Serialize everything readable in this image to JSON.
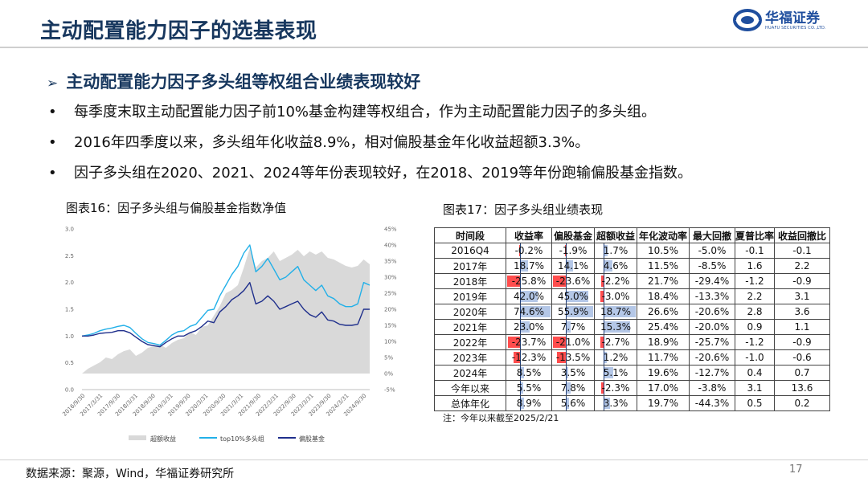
{
  "slide": {
    "title": "主动配置能力因子的选基表现",
    "headline": "主动配置能力因子多头组等权组合业绩表现较好",
    "arrow_glyph": "➢",
    "bullets": [
      "每季度末取主动配置能力因子前10%基金构建等权组合，作为主动配置能力因子的多头组。",
      "2016年四季度以来，多头组年化收益8.9%，相对偏股基金年化收益超额3.3%。",
      "因子多头组在2020、2021、2024等年份表现较好，在2018、2019等年份跑输偏股基金指数。"
    ],
    "source": "数据来源：聚源，Wind，华福证券研究所",
    "page_number": "17"
  },
  "logo": {
    "name": "华福证券",
    "sub": "HUAFU SECURITIES CO.,LTD."
  },
  "figure16": {
    "title": "图表16：因子多头组与偏股基金指数净值"
  },
  "figure17": {
    "title": "图表17：因子多头组业绩表现",
    "note": "注：今年以来截至2025/2/21",
    "headers": [
      "时间段",
      "收益率",
      "偏股基金",
      "超额收益",
      "年化波动率",
      "最大回撤",
      "夏普比率",
      "收益回撤比"
    ],
    "rows": [
      [
        "2016Q4",
        "-0.2%",
        "-1.9%",
        "1.7%",
        "10.5%",
        "-5.0%",
        "-0.1",
        "-0.1"
      ],
      [
        "2017年",
        "18.7%",
        "14.1%",
        "4.6%",
        "11.5%",
        "-8.5%",
        "1.6",
        "2.2"
      ],
      [
        "2018年",
        "-25.8%",
        "-23.6%",
        "-2.2%",
        "21.7%",
        "-29.4%",
        "-1.2",
        "-0.9"
      ],
      [
        "2019年",
        "42.0%",
        "45.0%",
        "-3.0%",
        "18.4%",
        "-13.3%",
        "2.2",
        "3.1"
      ],
      [
        "2020年",
        "74.6%",
        "55.9%",
        "18.7%",
        "26.6%",
        "-20.6%",
        "2.8",
        "3.6"
      ],
      [
        "2021年",
        "23.0%",
        "7.7%",
        "15.3%",
        "25.4%",
        "-20.0%",
        "0.9",
        "1.1"
      ],
      [
        "2022年",
        "-23.7%",
        "-21.0%",
        "-2.7%",
        "18.9%",
        "-25.7%",
        "-1.2",
        "-0.9"
      ],
      [
        "2023年",
        "-12.3%",
        "-13.5%",
        "1.2%",
        "11.7%",
        "-20.6%",
        "-1.0",
        "-0.6"
      ],
      [
        "2024年",
        "8.5%",
        "3.5%",
        "5.1%",
        "19.6%",
        "-12.7%",
        "0.4",
        "0.7"
      ],
      [
        "今年以来",
        "5.5%",
        "7.8%",
        "-2.3%",
        "17.0%",
        "-3.8%",
        "3.1",
        "13.6"
      ],
      [
        "总体年化",
        "8.9%",
        "5.6%",
        "3.3%",
        "19.7%",
        "-44.3%",
        "0.5",
        "0.2"
      ]
    ],
    "bar_values": {
      "return": [
        -0.2,
        18.7,
        -25.8,
        42.0,
        74.6,
        23.0,
        -23.7,
        -12.3,
        8.5,
        5.5,
        8.9
      ],
      "fund": [
        -1.9,
        14.1,
        -23.6,
        45.0,
        55.9,
        7.7,
        -21.0,
        -13.5,
        3.5,
        7.8,
        5.6
      ],
      "excess": [
        1.7,
        4.6,
        -2.2,
        -3.0,
        18.7,
        15.3,
        -2.7,
        1.2,
        5.1,
        -2.3,
        3.3
      ]
    }
  },
  "chart_data": {
    "type": "line",
    "x_ticks": [
      "2016/9/30",
      "2017/3/31",
      "2017/9/30",
      "2018/3/31",
      "2018/9/30",
      "2019/3/31",
      "2019/9/30",
      "2020/3/31",
      "2020/9/30",
      "2021/3/31",
      "2021/9/30",
      "2022/3/31",
      "2022/9/30",
      "2023/3/31",
      "2023/9/30",
      "2024/3/31",
      "2024/9/30"
    ],
    "left_axis": {
      "ticks": [
        "3.0",
        "2.5",
        "2.0",
        "1.5",
        "1.0",
        "0.5",
        "0.0"
      ],
      "ylim": [
        0.0,
        3.0
      ]
    },
    "right_axis": {
      "ticks": [
        "45%",
        "40%",
        "35%",
        "30%",
        "25%",
        "20%",
        "15%",
        "10%",
        "5%",
        "0%",
        "-5%"
      ],
      "ylim": [
        -5,
        45
      ]
    },
    "series": [
      {
        "name": "超额收益",
        "type": "area",
        "axis": "right",
        "color": "#d9d9d9",
        "values": [
          0.0,
          1.5,
          2.5,
          3.5,
          5.0,
          4.5,
          6.0,
          7.0,
          7.5,
          5.5,
          6.5,
          8.0,
          8.5,
          9.0,
          8.0,
          9.5,
          10.5,
          11.0,
          13.0,
          12.0,
          14.5,
          15.0,
          18.0,
          21.0,
          25.0,
          26.0,
          27.5,
          33.0,
          39.0,
          33.0,
          35.0,
          36.0,
          38.0,
          35.0,
          36.0,
          37.0,
          38.5,
          36.5,
          38.0,
          37.0,
          38.0,
          36.0,
          35.5,
          34.5,
          33.5,
          33.0,
          33.5,
          35.5,
          34.0
        ]
      },
      {
        "name": "top10%多头组",
        "type": "line",
        "axis": "left",
        "color": "#22b0e8",
        "values": [
          1.0,
          1.02,
          1.05,
          1.1,
          1.13,
          1.15,
          1.18,
          1.2,
          1.16,
          1.05,
          0.95,
          0.88,
          0.86,
          0.83,
          0.92,
          1.02,
          1.08,
          1.1,
          1.18,
          1.22,
          1.35,
          1.48,
          1.5,
          1.75,
          1.95,
          2.15,
          2.3,
          2.55,
          2.7,
          2.2,
          2.3,
          2.45,
          2.25,
          2.05,
          2.1,
          2.2,
          2.3,
          2.05,
          1.95,
          1.85,
          1.95,
          1.75,
          1.7,
          1.6,
          1.55,
          1.55,
          1.6,
          2.0,
          1.95
        ]
      },
      {
        "name": "偏股基金",
        "type": "line",
        "axis": "left",
        "color": "#1f2f8c",
        "values": [
          1.0,
          1.0,
          1.02,
          1.05,
          1.06,
          1.07,
          1.1,
          1.1,
          1.06,
          0.98,
          0.9,
          0.84,
          0.82,
          0.8,
          0.88,
          0.95,
          1.0,
          1.0,
          1.06,
          1.1,
          1.18,
          1.28,
          1.25,
          1.45,
          1.55,
          1.68,
          1.75,
          1.85,
          2.0,
          1.6,
          1.65,
          1.75,
          1.65,
          1.5,
          1.55,
          1.6,
          1.65,
          1.5,
          1.4,
          1.35,
          1.45,
          1.3,
          1.28,
          1.22,
          1.2,
          1.2,
          1.22,
          1.5,
          1.5
        ]
      }
    ],
    "legend": [
      "超额收益",
      "top10%多头组",
      "偏股基金"
    ],
    "legend_position": "bottom"
  }
}
